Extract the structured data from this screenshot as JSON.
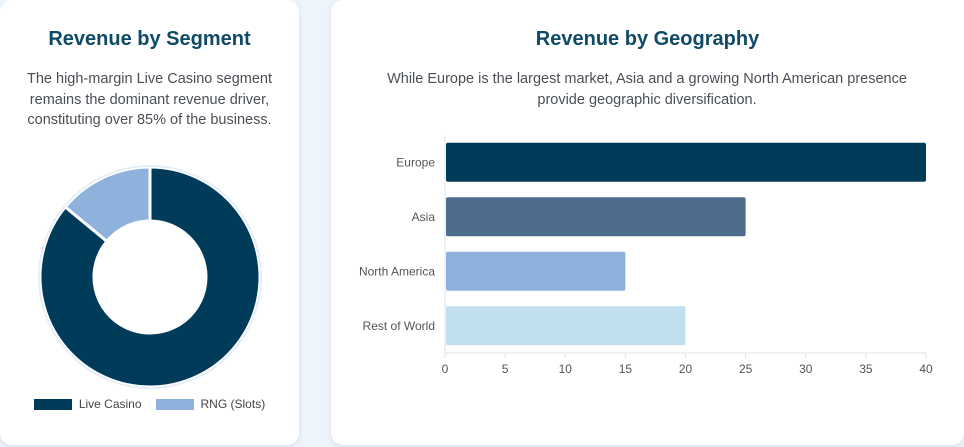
{
  "segment": {
    "title": "Revenue by Segment",
    "description": "The high-margin Live Casino segment remains the dominant revenue driver, constituting over 85% of the business."
  },
  "geography": {
    "title": "Revenue by Geography",
    "description": "While Europe is the largest market, Asia and a growing North American presence provide geographic diversification."
  },
  "chart_data": [
    {
      "type": "pie",
      "variant": "doughnut",
      "categories": [
        "Live Casino",
        "RNG (Slots)"
      ],
      "values": [
        86,
        14
      ],
      "colors": [
        "#003c5a",
        "#8fb2dc"
      ],
      "legend": "bottom"
    },
    {
      "type": "bar",
      "orientation": "horizontal",
      "categories": [
        "Europe",
        "Asia",
        "North America",
        "Rest of World"
      ],
      "values": [
        40,
        25,
        15,
        20
      ],
      "colors": [
        "#003c5a",
        "#4e6d8e",
        "#8fb2dc",
        "#c2dff0"
      ],
      "xlim": [
        0,
        40
      ],
      "xticks": [
        "0",
        "5",
        "10",
        "15",
        "20",
        "25",
        "30",
        "35",
        "40"
      ],
      "grid": false,
      "legend": "none"
    }
  ]
}
